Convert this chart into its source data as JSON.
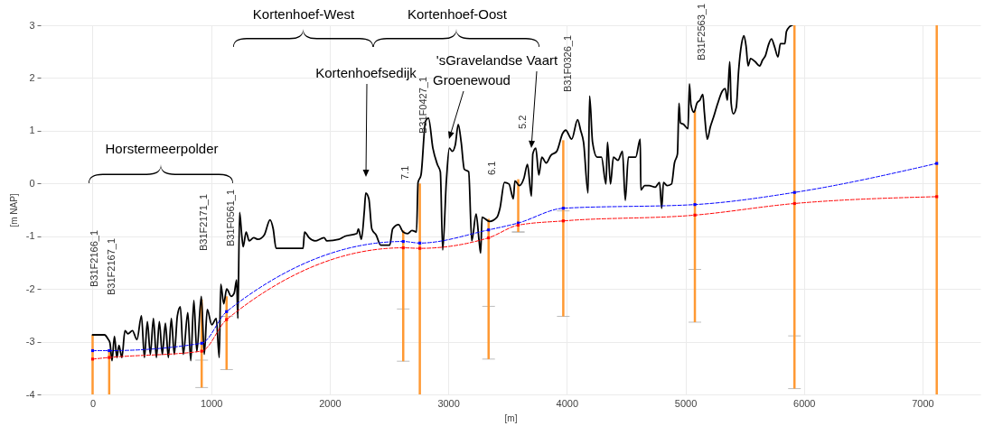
{
  "chart_data": {
    "type": "line",
    "xlabel": "[m]",
    "ylabel": "[m NAP]",
    "xlim": [
      -400,
      7450
    ],
    "ylim": [
      -4,
      3
    ],
    "xticks": [
      0,
      1000,
      2000,
      3000,
      4000,
      5000,
      6000,
      7000
    ],
    "yticks": [
      -4,
      -3,
      -2,
      -1,
      0,
      1,
      2,
      3
    ],
    "grid": true,
    "series": [
      {
        "color": "#000000",
        "line_style": "solid",
        "marker": "none",
        "x": [
          0,
          100,
          130,
          146,
          164,
          184,
          205,
          222,
          247,
          273,
          298,
          336,
          374,
          412,
          437,
          462,
          487,
          513,
          538,
          563,
          588,
          614,
          639,
          664,
          689,
          715,
          740,
          765,
          803,
          828,
          854,
          879,
          917,
          942,
          967,
          1005,
          1043,
          1068,
          1081,
          1106,
          1131,
          1169,
          1194,
          1215,
          1225,
          1240,
          1258,
          1270,
          1295,
          1321,
          1359,
          1396,
          1447,
          1497,
          1523,
          1548,
          1775,
          1788,
          1826,
          1876,
          1952,
          1977,
          2078,
          2128,
          2229,
          2242,
          2267,
          2292,
          2304,
          2330,
          2355,
          2392,
          2430,
          2506,
          2531,
          2581,
          2619,
          2657,
          2694,
          2732,
          2745,
          2770,
          2808,
          2833,
          2870,
          2908,
          2933,
          2953,
          2984,
          3009,
          3034,
          3059,
          3084,
          3109,
          3135,
          3172,
          3198,
          3235,
          3260,
          3273,
          3285,
          3348,
          3411,
          3436,
          3474,
          3512,
          3549,
          3562,
          3600,
          3638,
          3668,
          3701,
          3713,
          3738,
          3764,
          3789,
          3826,
          3864,
          3915,
          3965,
          3990,
          4041,
          4091,
          4116,
          4141,
          4179,
          4192,
          4217,
          4255,
          4292,
          4330,
          4343,
          4368,
          4393,
          4431,
          4469,
          4493,
          4519,
          4581,
          4619,
          4624,
          4657,
          4694,
          4745,
          4782,
          4800,
          4815,
          4845,
          4883,
          4908,
          4933,
          4946,
          4958,
          4984,
          5022,
          5034,
          5047,
          5072,
          5097,
          5122,
          5147,
          5160,
          5185,
          5210,
          5235,
          5273,
          5311,
          5336,
          5354,
          5374,
          5386,
          5404,
          5429,
          5449,
          5474,
          5494,
          5512,
          5529,
          5550,
          5588,
          5626,
          5651,
          5676,
          5701,
          5726,
          5751,
          5781,
          5801,
          5839,
          5852,
          5877,
          5902
        ],
        "values": [
          -2.87,
          -2.87,
          -2.95,
          -3.02,
          -3.36,
          -2.9,
          -3.3,
          -3.07,
          -3.3,
          -2.79,
          -2.85,
          -2.79,
          -2.96,
          -2.51,
          -3.3,
          -2.62,
          -3.24,
          -2.56,
          -3.3,
          -2.62,
          -3.24,
          -2.65,
          -3.3,
          -2.56,
          -3.24,
          -2.51,
          -2.34,
          -3.24,
          -2.45,
          -3.36,
          -2.22,
          -3.19,
          -2.14,
          -3.24,
          -2.39,
          -2.68,
          -2.56,
          -3.3,
          -1.91,
          -2.28,
          -2.0,
          -2.14,
          -2.08,
          -1.83,
          -2.56,
          -0.55,
          -0.98,
          -1.2,
          -0.92,
          -1.09,
          -1.03,
          -1.06,
          -0.98,
          -0.69,
          -0.86,
          -1.23,
          -1.23,
          -0.92,
          -1.03,
          -1.09,
          -1.03,
          -1.09,
          -1.06,
          -1.0,
          -0.95,
          -0.86,
          -1.06,
          -0.52,
          -0.18,
          -0.29,
          -0.86,
          -0.98,
          -1.17,
          -1.17,
          -0.86,
          -0.78,
          -0.92,
          -0.95,
          -0.89,
          -0.92,
          0.02,
          0.16,
          1.18,
          1.24,
          0.67,
          0.36,
          0.22,
          -1.26,
          0.05,
          0.67,
          0.61,
          0.73,
          1.12,
          0.78,
          0.27,
          0.22,
          -1.09,
          -0.58,
          -1.09,
          -1.32,
          -0.64,
          -0.72,
          -0.64,
          -0.47,
          0.02,
          -0.01,
          -0.29,
          0.05,
          -0.04,
          0.1,
          0.36,
          -0.24,
          0.56,
          0.67,
          0.16,
          0.5,
          0.39,
          0.53,
          0.61,
          0.95,
          1.01,
          0.84,
          1.21,
          1.01,
          0.78,
          -0.18,
          1.66,
          0.78,
          0.5,
          0.5,
          -0.01,
          0.78,
          -0.01,
          0.5,
          0.44,
          0.61,
          -0.32,
          0.5,
          0.5,
          0.84,
          -0.12,
          -0.04,
          -0.04,
          -0.07,
          0.02,
          -0.47,
          0.02,
          -0.04,
          -0.01,
          0.39,
          0.56,
          1.52,
          1.15,
          1.12,
          1.04,
          1.89,
          1.49,
          1.35,
          1.52,
          1.58,
          1.69,
          1.35,
          0.84,
          1.07,
          1.24,
          1.52,
          1.75,
          1.8,
          1.58,
          2.31,
          1.52,
          1.32,
          1.44,
          2.14,
          2.65,
          2.8,
          2.6,
          2.23,
          2.37,
          2.31,
          2.23,
          2.34,
          2.43,
          2.63,
          2.74,
          2.6,
          2.4,
          2.65,
          2.65,
          2.88,
          2.97,
          3.0
        ]
      },
      {
        "type": "line",
        "color": "#0000ff",
        "line_style": "dashed",
        "marker": "square",
        "x": [
          0,
          140,
          920,
          1130,
          2620,
          2760,
          3340,
          3590,
          3970,
          5080,
          5920,
          7120
        ],
        "values": [
          -3.17,
          -3.17,
          -3.03,
          -2.43,
          -1.1,
          -1.13,
          -0.88,
          -0.75,
          -0.47,
          -0.4,
          -0.17,
          0.38
        ]
      },
      {
        "type": "line",
        "color": "#ff0000",
        "line_style": "dashed",
        "marker": "square",
        "x": [
          0,
          140,
          920,
          1130,
          2620,
          2760,
          3340,
          3590,
          3970,
          5080,
          5920,
          7120
        ],
        "values": [
          -3.33,
          -3.3,
          -3.18,
          -2.58,
          -1.22,
          -1.23,
          -1.03,
          -0.79,
          -0.71,
          -0.6,
          -0.38,
          -0.25
        ]
      },
      {
        "type": "bar",
        "color": "#ff9933",
        "x": [
          0,
          140,
          920,
          1130,
          2620,
          2760,
          3340,
          3590,
          3970,
          5080,
          5920,
          7120
        ],
        "base": [
          -4,
          -4,
          -3.87,
          -3.53,
          -3.37,
          -4,
          -3.33,
          -0.92,
          -2.52,
          -2.63,
          -3.89,
          -4
        ],
        "values": [
          1.13,
          0.85,
          1.67,
          1.39,
          2.48,
          4.0,
          2.66,
          1.0,
          3.34,
          4.02,
          6.89,
          7.0
        ],
        "errors": [
          null,
          null,
          [
            -3.87,
            -3.35
          ],
          [
            -3.53,
            -2.52
          ],
          [
            -3.37,
            -2.38
          ],
          null,
          [
            -3.33,
            -2.33
          ],
          [
            -0.92,
            -0.92
          ],
          [
            -2.52,
            -0.52
          ],
          [
            -2.63,
            -1.63
          ],
          [
            -3.89,
            -2.89
          ],
          null
        ]
      }
    ],
    "annotations": [
      "B31F2166_1",
      "B31F2167_1",
      "B31F2171_1",
      "B31F0561_1",
      "7.1",
      "B31F0427_1",
      "6.1",
      "5.2",
      "B31F0326_1",
      "B31F2563_1",
      "Kortenhoefsedijk",
      "Groenewoud",
      "'sGravelandse Vaart",
      "Horstermeerpolder",
      "Kortenhoef-West",
      "Kortenhoef-Oost"
    ]
  }
}
